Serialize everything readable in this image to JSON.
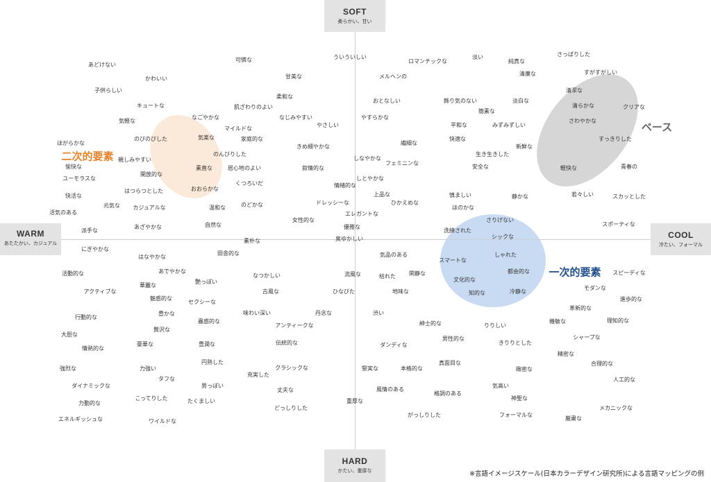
{
  "axes": {
    "top": {
      "label": "SOFT",
      "sub": "柔らかい、甘い"
    },
    "bottom": {
      "label": "HARD",
      "sub": "かたい、重厚な"
    },
    "left": {
      "label": "WARM",
      "sub": "あたたかい、カジュアル"
    },
    "right": {
      "label": "COOL",
      "sub": "冷たい、フォーマル"
    }
  },
  "clusters": [
    {
      "name": "二次的要素",
      "color": "#e8822a",
      "fill": "#fbe9d9"
    },
    {
      "name": "一次的要素",
      "color": "#1f4e8c",
      "fill": "#c9dbf2"
    },
    {
      "name": "ベース",
      "color": "#666666",
      "fill": "#d6d6d6"
    }
  ],
  "words": [
    "あどけない",
    "かわいい",
    "子供らしい",
    "キュートな",
    "気軽な",
    "ほがらかな",
    "のびのびした",
    "親しみやすい",
    "愉快な",
    "ユーモラスな",
    "開放的な",
    "快活な",
    "元気な",
    "はつらつとした",
    "カジュアルな",
    "活気のある",
    "あざやかな",
    "派手な",
    "にぎやかな",
    "はなやかな",
    "あでやかな",
    "活動的な",
    "アクティブな",
    "華麗な",
    "艶っぽい",
    "魅惑的な",
    "セクシーな",
    "行動的な",
    "豊かな",
    "贅沢な",
    "大胆な",
    "情熱的な",
    "豪華な",
    "豊潤な",
    "強烈な",
    "力強い",
    "タフな",
    "円熟した",
    "ダイナミックな",
    "男っぽい",
    "こってりした",
    "たくましい",
    "力動的な",
    "エネルギッシュな",
    "ワイルドな",
    "可憐な",
    "甘美な",
    "柔和な",
    "なごやかな",
    "肌ざわりのよい",
    "なじみやすい",
    "マイルドな",
    "気楽な",
    "家庭的な",
    "のんびりした",
    "素直な",
    "居心地のよい",
    "くつろいだ",
    "おおらかな",
    "温和な",
    "のどかな",
    "自然な",
    "素朴な",
    "田舎的な",
    "なつかしい",
    "古風な",
    "味わい深い",
    "蟲惑的な",
    "アンティークな",
    "伝統的な",
    "充実した",
    "クラシックな",
    "丈夫な",
    "どっしりした",
    "ういういしい",
    "やさしい",
    "きめ細やかな",
    "叙情的な",
    "情緒的な",
    "ドレッシーな",
    "女性的な",
    "エレガントな",
    "優雅な",
    "奥ゆかしい",
    "丹念な",
    "流風な",
    "枯れた",
    "ひなびた",
    "地味な",
    "渋い",
    "堅実な",
    "風情のある",
    "重厚な",
    "ロマンチックな",
    "メルヘンの",
    "おとなしい",
    "やすらかな",
    "繊細な",
    "しなやかな",
    "フェミニンな",
    "しとやかな",
    "上品な",
    "ひかえめな",
    "気品のある",
    "閑静な",
    "ダンディな",
    "本格的な",
    "格調のある",
    "がっしりした",
    "淡い",
    "純真な",
    "清廉な",
    "飾り気のない",
    "淡白な",
    "簡素な",
    "平和な",
    "みずみずしい",
    "快適な",
    "新鮮な",
    "生き生きした",
    "安全な",
    "慎ましい",
    "静かな",
    "ほのかな",
    "さりげない",
    "洗練された",
    "シックな",
    "スマートな",
    "しゃれた",
    "都会的な",
    "文化的な",
    "知的な",
    "冷静な",
    "紳士的な",
    "男性的な",
    "りりしい",
    "きりりとした",
    "真面目な",
    "緻密な",
    "気高い",
    "神聖な",
    "フォーマルな",
    "厳粛な",
    "さっぱりした",
    "すがすがしい",
    "清潔な",
    "清らかな",
    "クリアな",
    "さわやかな",
    "すっきりした",
    "軽快な",
    "青春の",
    "若々しい",
    "スカッとした",
    "スポーティな",
    "スピーディな",
    "モダンな",
    "進歩的な",
    "革新的な",
    "理知的な",
    "機敏な",
    "シャープな",
    "精密な",
    "合理的な",
    "人工的な",
    "メカニックな"
  ],
  "footnote": "※言語イメージスケール(日本カラーデザイン研究所)による言語マッピングの例"
}
